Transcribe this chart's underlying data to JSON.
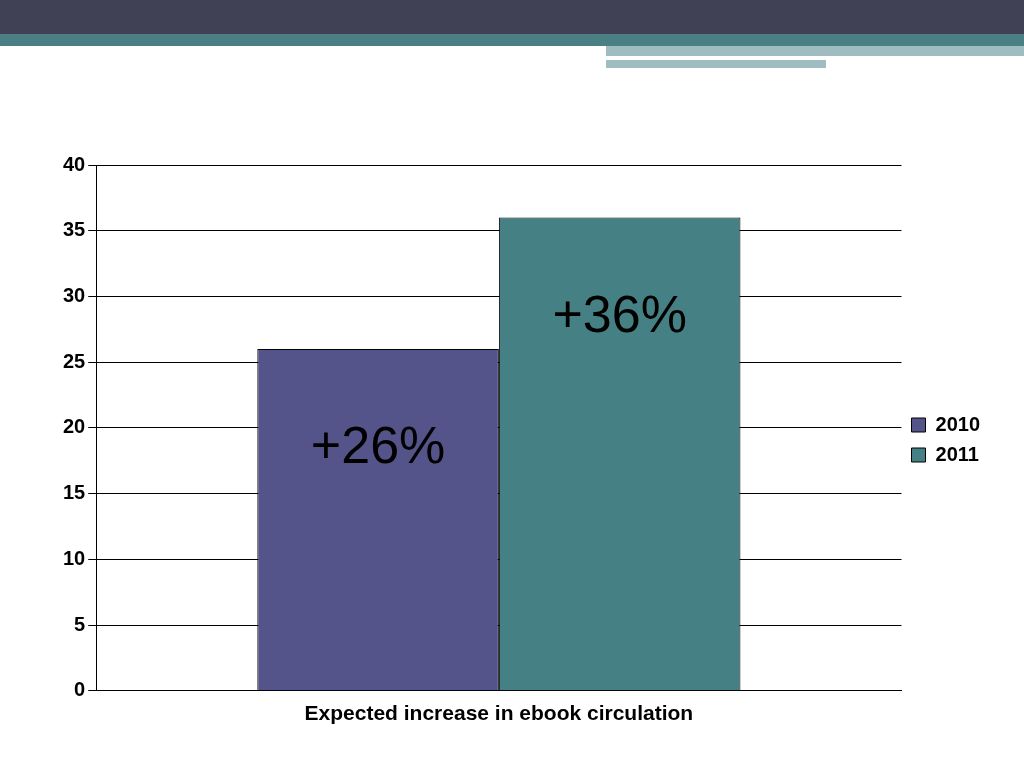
{
  "chart_data": {
    "type": "bar",
    "categories": [
      "Expected increase in ebook circulation"
    ],
    "series": [
      {
        "name": "2010",
        "color": "#55548a",
        "values": [
          26
        ],
        "value_labels": [
          "+26%"
        ]
      },
      {
        "name": "2011",
        "color": "#458084",
        "values": [
          36
        ],
        "value_labels": [
          "+36%"
        ]
      }
    ],
    "ylim": [
      0,
      40
    ],
    "yticks": [
      0,
      5,
      10,
      15,
      20,
      25,
      30,
      35,
      40
    ],
    "grid": "y",
    "legend": "right"
  }
}
